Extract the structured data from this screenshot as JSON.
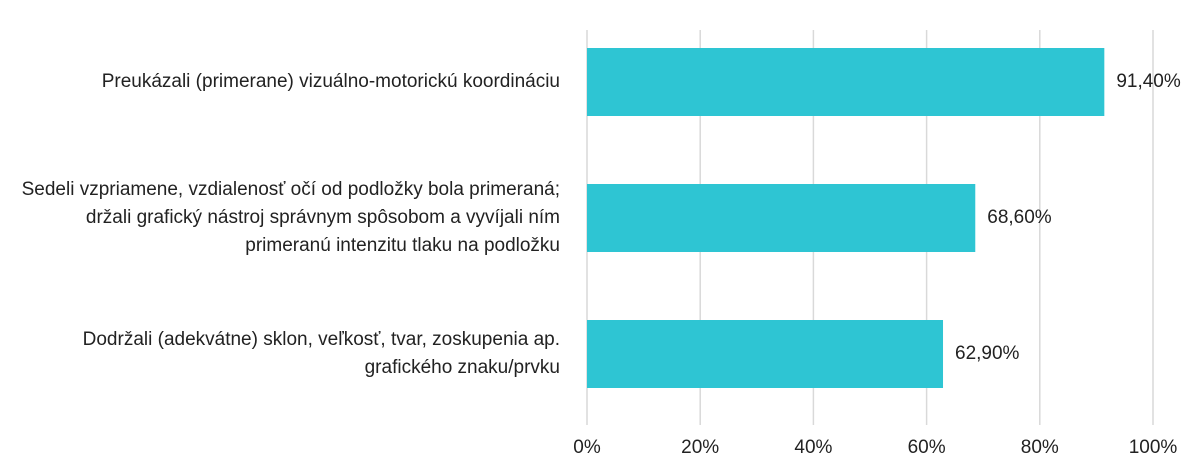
{
  "chart_data": {
    "type": "barh",
    "categories": [
      "Preukázali (primerane) vizuálno-motorickú koordináciu",
      "Sedeli vzpriamene, vzdialenosť očí od podložky bola primeraná; držali grafický nástroj správnym spôsobom a vyvíjali ním primeranú intenzitu tlaku na podložku",
      "Dodržali (adekvátne) sklon, veľkosť, tvar, zoskupenia ap. grafického znaku/prvku"
    ],
    "values": [
      91.4,
      68.6,
      62.9
    ],
    "value_labels": [
      "91,40%",
      "68,60%",
      "62,90%"
    ],
    "color": "#2ec5d3",
    "xlim": [
      0,
      100
    ],
    "xticks": [
      {
        "value": 0,
        "label": "0%"
      },
      {
        "value": 20,
        "label": "20%"
      },
      {
        "value": 40,
        "label": "40%"
      },
      {
        "value": 60,
        "label": "60%"
      },
      {
        "value": 80,
        "label": "80%"
      },
      {
        "value": 100,
        "label": "100%"
      }
    ],
    "grid": true
  }
}
